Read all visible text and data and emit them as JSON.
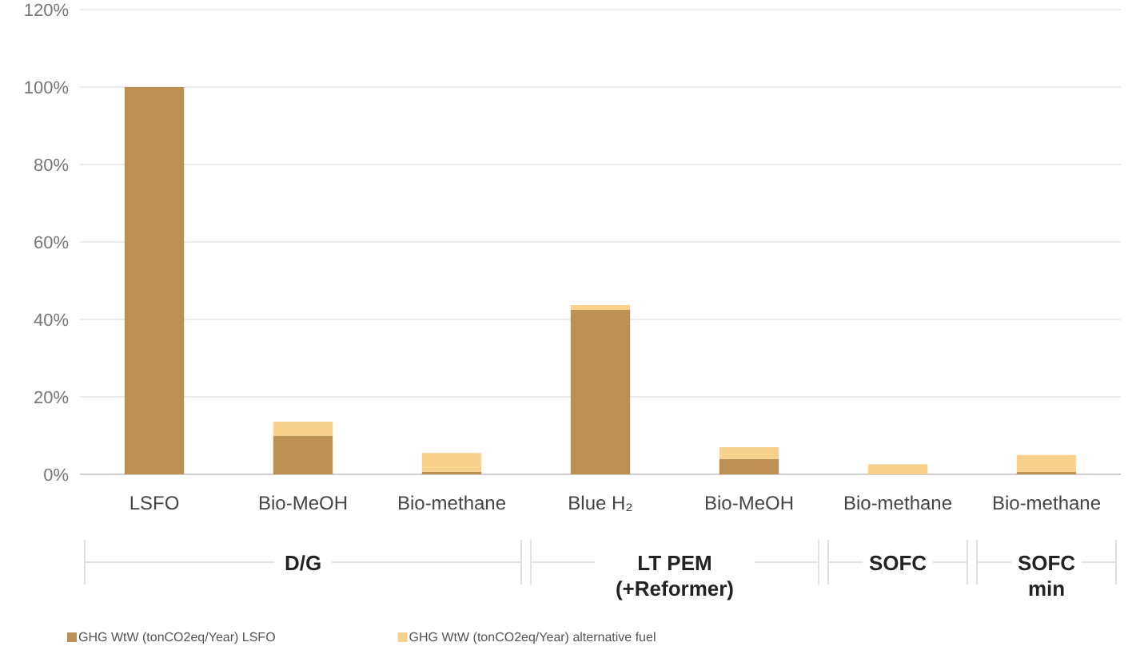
{
  "chart_data": {
    "type": "bar",
    "stacked": true,
    "categories": [
      "LSFO",
      "Bio-MeOH",
      "Bio-methane",
      "Blue H₂",
      "Bio-MeOH",
      "Bio-methane",
      "Bio-methane"
    ],
    "series": [
      {
        "name": "GHG WtW (tonCO2eq/Year) LSFO",
        "color": "#bc8f53",
        "values": [
          100,
          10,
          0.7,
          42.5,
          4,
          0,
          0.6
        ]
      },
      {
        "name": "GHG WtW (tonCO2eq/Year) alternative fuel",
        "color": "#f8d28c",
        "values": [
          0,
          3.6,
          4.8,
          1.2,
          3,
          2.6,
          4.4
        ]
      }
    ],
    "ylim": [
      0,
      120
    ],
    "yticks": [
      {
        "value": 0,
        "label": "0%"
      },
      {
        "value": 20,
        "label": "20%"
      },
      {
        "value": 40,
        "label": "40%"
      },
      {
        "value": 60,
        "label": "60%"
      },
      {
        "value": 80,
        "label": "80%"
      },
      {
        "value": 100,
        "label": "100%"
      },
      {
        "value": 120,
        "label": "120%"
      }
    ],
    "grid": "y",
    "legend": "bottom",
    "annotations": [
      "D/G",
      "LT PEM (+Reformer)",
      "SOFC",
      "SOFC min"
    ]
  }
}
